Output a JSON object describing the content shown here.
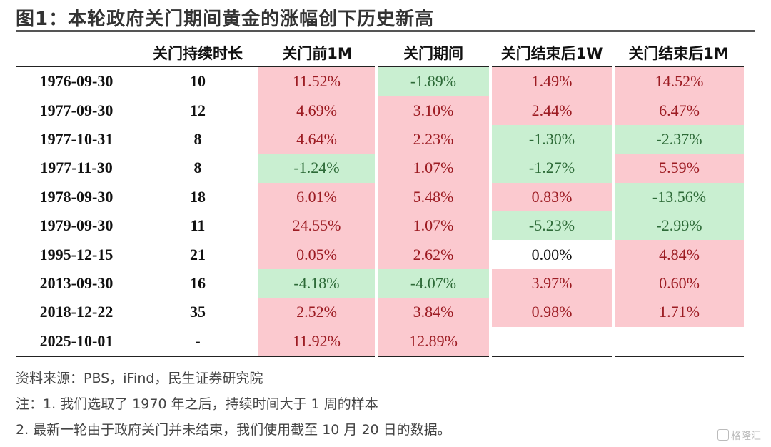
{
  "title": "图1：本轮政府关门期间黄金的涨幅创下历史新高",
  "table": {
    "headers": [
      "",
      "关门持续时长",
      "关门前1M",
      "关门期间",
      "关门结束后1W",
      "关门结束后1M"
    ],
    "rows": [
      {
        "date": "1976-09-30",
        "duration": "10",
        "before_1m": "11.52%",
        "during": "-1.89%",
        "after_1w": "1.49%",
        "after_1m": "14.52%"
      },
      {
        "date": "1977-09-30",
        "duration": "12",
        "before_1m": "4.69%",
        "during": "3.10%",
        "after_1w": "2.44%",
        "after_1m": "6.47%"
      },
      {
        "date": "1977-10-31",
        "duration": "8",
        "before_1m": "4.64%",
        "during": "2.23%",
        "after_1w": "-1.30%",
        "after_1m": "-2.37%"
      },
      {
        "date": "1977-11-30",
        "duration": "8",
        "before_1m": "-1.24%",
        "during": "1.07%",
        "after_1w": "-1.27%",
        "after_1m": "5.59%"
      },
      {
        "date": "1978-09-30",
        "duration": "18",
        "before_1m": "6.01%",
        "during": "5.48%",
        "after_1w": "0.83%",
        "after_1m": "-13.56%"
      },
      {
        "date": "1979-09-30",
        "duration": "11",
        "before_1m": "24.55%",
        "during": "1.07%",
        "after_1w": "-5.23%",
        "after_1m": "-2.99%"
      },
      {
        "date": "1995-12-15",
        "duration": "21",
        "before_1m": "0.05%",
        "during": "2.62%",
        "after_1w": "0.00%",
        "after_1m": "4.84%"
      },
      {
        "date": "2013-09-30",
        "duration": "16",
        "before_1m": "-4.18%",
        "during": "-4.07%",
        "after_1w": "3.97%",
        "after_1m": "0.60%"
      },
      {
        "date": "2018-12-22",
        "duration": "35",
        "before_1m": "2.52%",
        "during": "3.84%",
        "after_1w": "0.98%",
        "after_1m": "1.71%"
      },
      {
        "date": "2025-10-01",
        "duration": "-",
        "before_1m": "11.92%",
        "during": "12.89%",
        "after_1w": "",
        "after_1m": ""
      }
    ]
  },
  "colors": {
    "positive_fill": "#fbc9cf",
    "negative_fill": "#c9efd1"
  },
  "notes": [
    "资料来源：PBS，iFind，民生证券研究院",
    "注：1. 我们选取了 1970 年之后，持续时间大于 1 周的样本",
    "2. 最新一轮由于政府关门并未结束，我们使用截至 10 月 20 日的数据。"
  ],
  "watermark": "格隆汇"
}
